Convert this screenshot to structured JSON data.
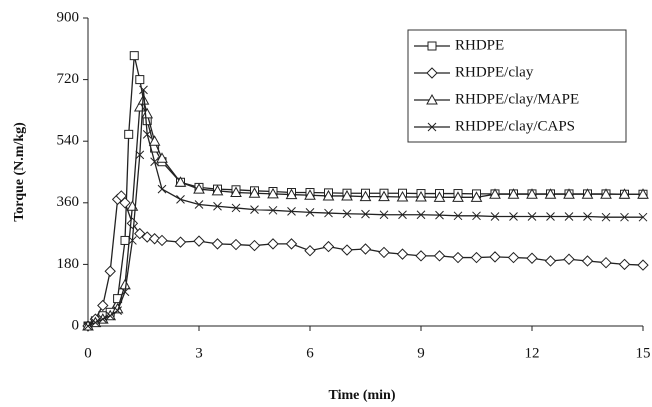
{
  "chart_data": {
    "type": "line",
    "xlabel": "Time (min)",
    "ylabel": "Torque (N.m/kg)",
    "xlim": [
      0,
      15
    ],
    "xticks": [
      0,
      3,
      6,
      9,
      12,
      15
    ],
    "ylim": [
      0,
      900
    ],
    "yticks": [
      0,
      180,
      360,
      540,
      720,
      900
    ],
    "legend": "upper right",
    "series": [
      {
        "name": "RHDPE",
        "color": "#222222",
        "marker": "square",
        "x": [
          0,
          0.2,
          0.4,
          0.6,
          0.8,
          1.0,
          1.1,
          1.25,
          1.4,
          1.6,
          1.8,
          2,
          2.5,
          3,
          3.5,
          4,
          4.5,
          5,
          5.5,
          6,
          6.5,
          7,
          7.5,
          8,
          8.5,
          9,
          9.5,
          10,
          10.5,
          11,
          11.5,
          12,
          12.5,
          13,
          13.5,
          14,
          14.5,
          15
        ],
        "values": [
          0,
          15,
          30,
          40,
          80,
          250,
          560,
          790,
          720,
          600,
          520,
          480,
          420,
          405,
          400,
          398,
          395,
          393,
          390,
          390,
          389,
          388,
          388,
          388,
          388,
          387,
          387,
          387,
          386,
          386,
          386,
          386,
          386,
          386,
          386,
          386,
          385,
          385
        ]
      },
      {
        "name": "RHDPE/clay",
        "color": "#222222",
        "marker": "diamond",
        "x": [
          0,
          0.2,
          0.4,
          0.6,
          0.8,
          0.9,
          1.0,
          1.2,
          1.4,
          1.6,
          1.8,
          2,
          2.5,
          3,
          3.5,
          4,
          4.5,
          5,
          5.5,
          6,
          6.5,
          7,
          7.5,
          8,
          8.5,
          9,
          9.5,
          10,
          10.5,
          11,
          11.5,
          12,
          12.5,
          13,
          13.5,
          14,
          14.5,
          15
        ],
        "values": [
          0,
          20,
          60,
          160,
          370,
          380,
          360,
          300,
          270,
          260,
          255,
          250,
          245,
          248,
          240,
          238,
          235,
          240,
          240,
          220,
          232,
          222,
          225,
          215,
          210,
          205,
          205,
          200,
          200,
          202,
          200,
          198,
          190,
          195,
          190,
          185,
          180,
          178
        ]
      },
      {
        "name": "RHDPE/clay/MAPE",
        "color": "#222222",
        "marker": "triangle",
        "x": [
          0,
          0.2,
          0.4,
          0.6,
          0.8,
          1.0,
          1.2,
          1.4,
          1.5,
          1.6,
          1.8,
          2,
          2.5,
          3,
          3.5,
          4,
          4.5,
          5,
          5.5,
          6,
          6.5,
          7,
          7.5,
          8,
          8.5,
          9,
          9.5,
          10,
          10.5,
          11,
          11.5,
          12,
          12.5,
          13,
          13.5,
          14,
          14.5,
          15
        ],
        "values": [
          0,
          10,
          20,
          30,
          50,
          120,
          350,
          640,
          660,
          620,
          540,
          490,
          420,
          400,
          395,
          390,
          388,
          386,
          384,
          382,
          380,
          380,
          378,
          378,
          377,
          377,
          376,
          376,
          376,
          385,
          385,
          385,
          385,
          385,
          385,
          385,
          385,
          385
        ]
      },
      {
        "name": "RHDPE/clay/CAPS",
        "color": "#222222",
        "marker": "x",
        "x": [
          0,
          0.2,
          0.4,
          0.6,
          0.8,
          1.0,
          1.2,
          1.4,
          1.5,
          1.6,
          1.8,
          2,
          2.5,
          3,
          3.5,
          4,
          4.5,
          5,
          5.5,
          6,
          6.5,
          7,
          7.5,
          8,
          8.5,
          9,
          9.5,
          10,
          10.5,
          11,
          11.5,
          12,
          12.5,
          13,
          13.5,
          14,
          14.5,
          15
        ],
        "values": [
          0,
          10,
          20,
          30,
          45,
          100,
          250,
          500,
          690,
          560,
          480,
          400,
          370,
          355,
          350,
          345,
          340,
          338,
          335,
          332,
          330,
          328,
          327,
          325,
          325,
          325,
          324,
          322,
          322,
          320,
          320,
          320,
          320,
          320,
          320,
          318,
          318,
          318
        ]
      }
    ]
  }
}
